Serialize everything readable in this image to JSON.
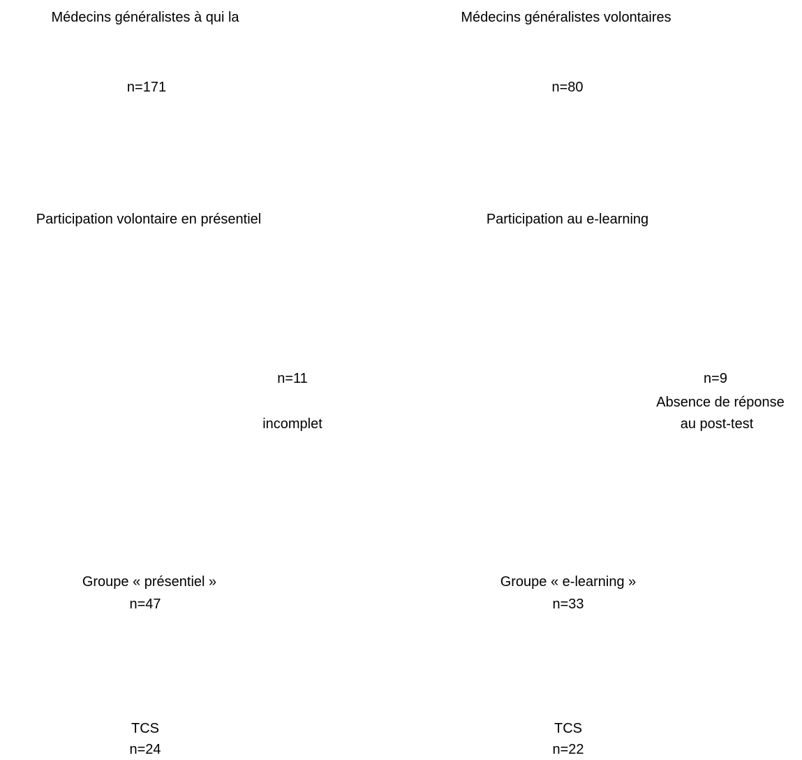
{
  "flowchart": {
    "left_top": {
      "title": "Médecins généralistes à qui la",
      "count": "n=171"
    },
    "right_top": {
      "title": "Médecins généralistes volontaires",
      "count": "n=80"
    },
    "left_participation": {
      "label": "Participation volontaire en présentiel"
    },
    "right_participation": {
      "label": "Participation au e-learning"
    },
    "left_exclusion": {
      "count": "n=11",
      "reason": "incomplet"
    },
    "right_exclusion": {
      "count": "n=9",
      "reason_line1": "Absence de réponse",
      "reason_line2": "au post-test"
    },
    "left_group": {
      "label": "Groupe  « présentiel »",
      "count": "n=47"
    },
    "right_group": {
      "label": "Groupe  « e-learning »",
      "count": "n=33"
    },
    "left_tcs": {
      "label": "TCS",
      "count": "n=24"
    },
    "right_tcs": {
      "label": "TCS",
      "count": "n=22"
    }
  }
}
